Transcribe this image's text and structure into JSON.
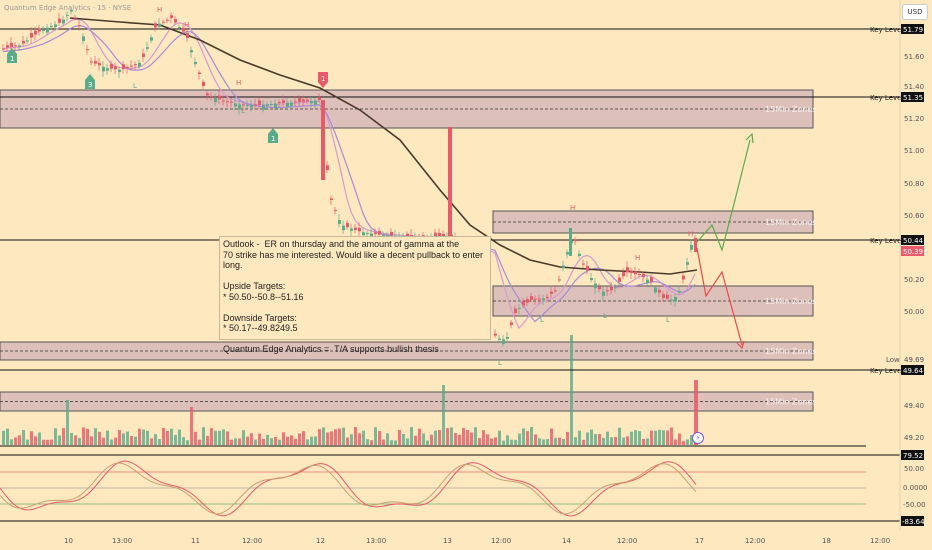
{
  "header": {
    "symbol_text": "Quantum Edge Analytics · 15 · NYSE",
    "currency": "USD"
  },
  "outlook": {
    "text": "Outlook -  ER on thursday and the amount of gamma at the\n70 strike has me interested. Would like a decent pullback to enter long.\n\nUpside Targets:\n* 50.50--50.8--51.16\n\nDownside Targets:\n* 50.17--49.8249.5\n\nQuantum Edge Analytics =  T/A supports bullish thesis"
  },
  "key_levels": [
    {
      "label": "Key Level",
      "value": "51.79"
    },
    {
      "label": "Key Level",
      "value": "51.35"
    },
    {
      "label": "Key Level",
      "value": "50.44"
    },
    {
      "label": "Key Level",
      "value": "49.64"
    }
  ],
  "price_tags": {
    "current": "50.39",
    "low_label": "Low",
    "low_value": "49.69"
  },
  "zone_label": "15Min Zones",
  "oscillator_labels": {
    "top": "79.52",
    "bottom": "-83.64",
    "mid1": "50.00",
    "mid2": "0.0000",
    "mid3": "-50.00"
  },
  "y_axis_ticks": [
    "51.60",
    "51.40",
    "51.20",
    "51.00",
    "50.80",
    "50.60",
    "50.20",
    "50.00",
    "49.40",
    "49.20"
  ],
  "x_axis_ticks": [
    "10",
    "13:00",
    "11",
    "12:00",
    "12",
    "13:00",
    "13",
    "12:00",
    "14",
    "12:00",
    "17",
    "12:00",
    "18",
    "12:00"
  ],
  "marker_labels": {
    "high": "H",
    "low": "L",
    "buy1": "1",
    "buy3": "3",
    "sell1": "1"
  },
  "colors": {
    "bull": "#5aab8a",
    "bear": "#e8596a",
    "zone_fill": "#d8b8b8",
    "zone_border": "#555555",
    "ema": "#4a3a2a",
    "ma_pink": "#d89ad0",
    "ma_purple": "#a98ad8",
    "arrow_up": "#5aab4a",
    "arrow_down": "#e84a4a",
    "background": "#fde8c0"
  },
  "chart_data": {
    "type": "candlestick",
    "price_axis_range": [
      49.2,
      51.85
    ],
    "key_level_values": [
      51.79,
      51.35,
      50.44,
      49.64
    ],
    "current_price": 50.39,
    "low": 49.69,
    "zones": [
      {
        "label": "15Min Zones",
        "top": 51.43,
        "bottom": 51.21
      },
      {
        "label": "15Min Zones",
        "top": 50.59,
        "bottom": 50.47
      },
      {
        "label": "15Min Zones",
        "top": 50.16,
        "bottom": 49.98
      },
      {
        "label": "15Min Zones",
        "top": 49.85,
        "bottom": 49.74
      },
      {
        "label": "15Min Zones",
        "top": 49.48,
        "bottom": 49.37
      }
    ],
    "projections": {
      "up_target": 51.16,
      "down_target": 49.82
    }
  }
}
